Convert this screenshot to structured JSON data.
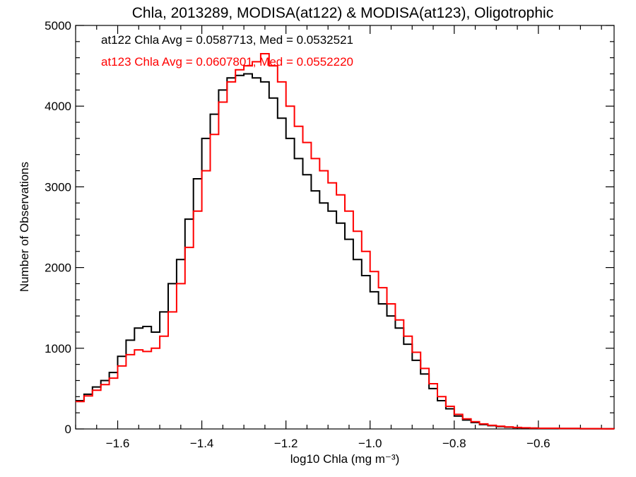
{
  "chart_data": {
    "type": "line",
    "title": "Chla, 2013289, MODISA(at122) & MODISA(at123), Oligotrophic",
    "xlabel": "log10 Chla (mg m⁻³)",
    "ylabel": "Number of Observations",
    "xlim": [
      -1.7,
      -0.42
    ],
    "ylim": [
      0,
      5000
    ],
    "x_ticks": [
      -1.6,
      -1.4,
      -1.2,
      -1.0,
      -0.8,
      -0.6
    ],
    "x_tick_labels": [
      "−1.6",
      "−1.4",
      "−1.2",
      "−1.0",
      "−0.8",
      "−0.6"
    ],
    "y_ticks": [
      0,
      1000,
      2000,
      3000,
      4000,
      5000
    ],
    "y_tick_labels": [
      "0",
      "1000",
      "2000",
      "3000",
      "4000",
      "5000"
    ],
    "grid": false,
    "annotations": [
      "at122 Chla Avg = 0.0587713, Med = 0.0532521",
      "at123 Chla Avg = 0.0607801, Med = 0.0552220"
    ],
    "series": [
      {
        "color": "#000000",
        "x": [
          -1.7,
          -1.68,
          -1.66,
          -1.64,
          -1.62,
          -1.6,
          -1.58,
          -1.56,
          -1.54,
          -1.52,
          -1.5,
          -1.48,
          -1.46,
          -1.44,
          -1.42,
          -1.4,
          -1.38,
          -1.36,
          -1.34,
          -1.32,
          -1.3,
          -1.28,
          -1.26,
          -1.24,
          -1.22,
          -1.2,
          -1.18,
          -1.16,
          -1.14,
          -1.12,
          -1.1,
          -1.08,
          -1.06,
          -1.04,
          -1.02,
          -1.0,
          -0.98,
          -0.96,
          -0.94,
          -0.92,
          -0.9,
          -0.88,
          -0.86,
          -0.84,
          -0.82,
          -0.8,
          -0.78,
          -0.76,
          -0.74,
          -0.72,
          -0.7,
          -0.68,
          -0.66,
          -0.64,
          -0.62,
          -0.6,
          -0.55,
          -0.5,
          -0.45,
          -0.42
        ],
        "y": [
          350,
          430,
          520,
          600,
          700,
          900,
          1100,
          1250,
          1270,
          1200,
          1450,
          1800,
          2100,
          2600,
          3100,
          3600,
          3900,
          4200,
          4350,
          4380,
          4400,
          4350,
          4300,
          4100,
          3850,
          3600,
          3350,
          3150,
          2950,
          2800,
          2700,
          2550,
          2350,
          2100,
          1900,
          1700,
          1550,
          1400,
          1250,
          1050,
          850,
          680,
          500,
          350,
          250,
          160,
          110,
          80,
          55,
          40,
          30,
          22,
          15,
          12,
          10,
          8,
          5,
          3,
          2,
          1
        ]
      },
      {
        "color": "#ff0000",
        "x": [
          -1.7,
          -1.68,
          -1.66,
          -1.64,
          -1.62,
          -1.6,
          -1.58,
          -1.56,
          -1.54,
          -1.52,
          -1.5,
          -1.48,
          -1.46,
          -1.44,
          -1.42,
          -1.4,
          -1.38,
          -1.36,
          -1.34,
          -1.32,
          -1.3,
          -1.28,
          -1.26,
          -1.24,
          -1.22,
          -1.2,
          -1.18,
          -1.16,
          -1.14,
          -1.12,
          -1.1,
          -1.08,
          -1.06,
          -1.04,
          -1.02,
          -1.0,
          -0.98,
          -0.96,
          -0.94,
          -0.92,
          -0.9,
          -0.88,
          -0.86,
          -0.84,
          -0.82,
          -0.8,
          -0.78,
          -0.76,
          -0.74,
          -0.72,
          -0.7,
          -0.68,
          -0.66,
          -0.64,
          -0.62,
          -0.6,
          -0.55,
          -0.5,
          -0.45,
          -0.42
        ],
        "y": [
          340,
          410,
          480,
          550,
          630,
          780,
          920,
          980,
          960,
          1000,
          1150,
          1450,
          1800,
          2250,
          2700,
          3200,
          3650,
          4050,
          4300,
          4450,
          4500,
          4550,
          4650,
          4500,
          4300,
          4000,
          3750,
          3550,
          3350,
          3200,
          3050,
          2900,
          2700,
          2450,
          2200,
          1950,
          1750,
          1550,
          1350,
          1150,
          950,
          750,
          560,
          400,
          280,
          180,
          125,
          90,
          62,
          45,
          34,
          25,
          18,
          14,
          11,
          9,
          6,
          4,
          2,
          1
        ]
      }
    ]
  }
}
